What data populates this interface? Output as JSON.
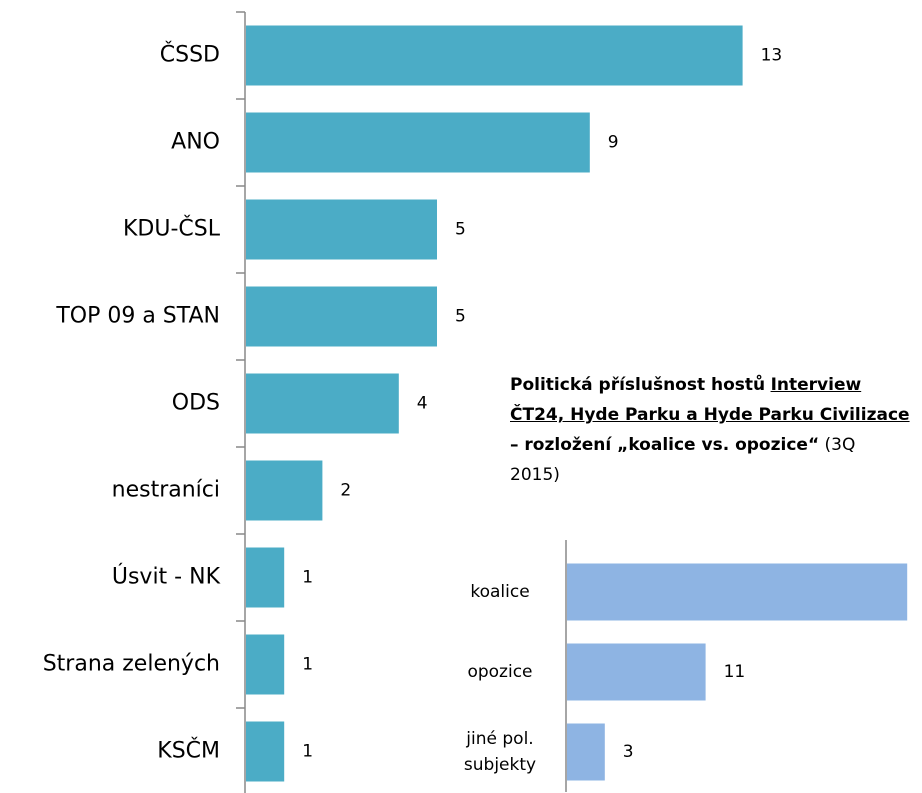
{
  "chart_data": [
    {
      "type": "hbar",
      "categories": [
        "ČSSD",
        "ANO",
        "KDU-ČSL",
        "TOP 09 a STAN",
        "ODS",
        "nestraníci",
        "Úsvit - NK",
        "Strana zelených",
        "KSČM"
      ],
      "values": [
        13,
        9,
        5,
        5,
        4,
        2,
        1,
        1,
        1
      ],
      "color": "#4bacc6"
    },
    {
      "type": "hbar",
      "title": [
        "Politická příslušnost hostů",
        "Interview ČT24, Hyde Parku a Hyde Parku Civilizace",
        "– rozložení „koalice vs. opozice“",
        "(3Q 2015)"
      ],
      "categories": [
        "koalice",
        "opozice",
        "jiné pol. subjekty"
      ],
      "values": [
        27,
        11,
        3
      ],
      "color": "#8eb4e3"
    }
  ]
}
